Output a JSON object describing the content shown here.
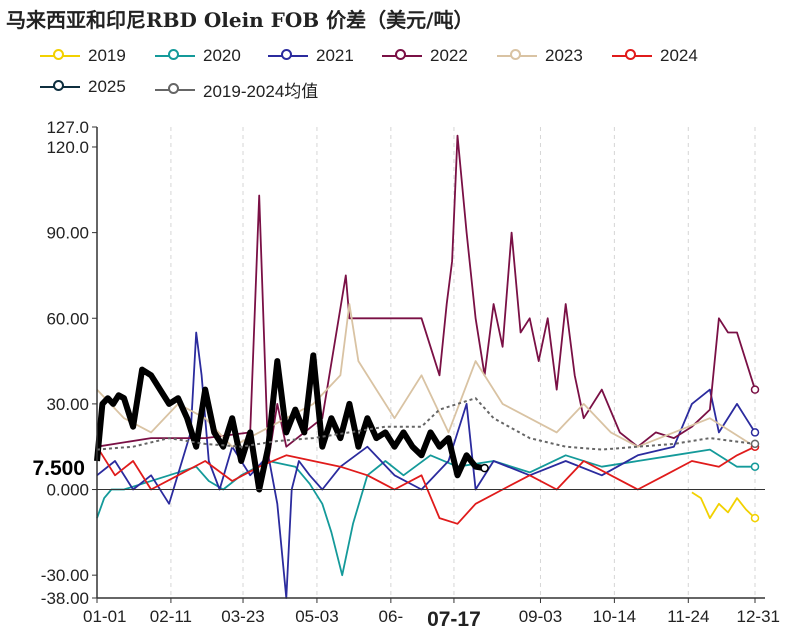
{
  "title": "马来西亚和印尼RBD Olein FOB 价差（美元/吨）",
  "legend": [
    {
      "label": "2019",
      "color": "#f2d100"
    },
    {
      "label": "2020",
      "color": "#149a9a"
    },
    {
      "label": "2021",
      "color": "#2b2b9e"
    },
    {
      "label": "2022",
      "color": "#7a1045"
    },
    {
      "label": "2023",
      "color": "#d9c3a3"
    },
    {
      "label": "2024",
      "color": "#e01b1b"
    },
    {
      "label": "2025",
      "color": "#0f2f3f"
    },
    {
      "label": "2019-2024均值",
      "color": "#666666"
    }
  ],
  "chart_data": {
    "type": "line",
    "title": "马来西亚和印尼RBD Olein FOB 价差（美元/吨）",
    "xlabel": "",
    "ylabel": "",
    "ylim": [
      -38,
      127
    ],
    "y_ticks": [
      "127.0",
      "120.0",
      "90.00",
      "60.00",
      "30.00",
      "0.000",
      "-30.00",
      "-38.00"
    ],
    "y_tick_values": [
      127,
      120,
      90,
      60,
      30,
      0,
      -30,
      -38
    ],
    "x_ticks": [
      "01-01",
      "02-11",
      "03-23",
      "05-03",
      "06-",
      "07-17",
      "09-03",
      "10-14",
      "11-24",
      "12-31"
    ],
    "highlight_value_label": "7.500",
    "highlight_value": 7.5,
    "highlight_tick": "07-17",
    "series": [
      {
        "name": "2019",
        "x": [
          330,
          335,
          340,
          345,
          350,
          355,
          360,
          365
        ],
        "values": [
          -1,
          -3,
          -10,
          -5,
          -8,
          -3,
          -7,
          -10
        ]
      },
      {
        "name": "2020",
        "x": [
          0,
          4,
          8,
          15,
          25,
          40,
          55,
          62,
          70,
          80,
          95,
          110,
          118,
          125,
          130,
          136,
          142,
          150,
          160,
          170,
          185,
          200,
          220,
          240,
          260,
          280,
          300,
          320,
          340,
          355,
          365
        ],
        "values": [
          -10,
          -3,
          0,
          0,
          2,
          5,
          8,
          3,
          0,
          5,
          10,
          8,
          2,
          -5,
          -15,
          -30,
          -12,
          5,
          10,
          5,
          12,
          8,
          10,
          6,
          12,
          8,
          10,
          12,
          14,
          8,
          8
        ]
      },
      {
        "name": "2021",
        "x": [
          0,
          10,
          20,
          30,
          40,
          52,
          55,
          58,
          62,
          68,
          75,
          85,
          95,
          100,
          105,
          108,
          112,
          118,
          125,
          135,
          150,
          165,
          180,
          195,
          205,
          210,
          220,
          240,
          260,
          280,
          300,
          320,
          330,
          340,
          345,
          355,
          360,
          365
        ],
        "values": [
          5,
          10,
          0,
          5,
          -5,
          20,
          55,
          40,
          10,
          0,
          15,
          5,
          12,
          -5,
          -38,
          0,
          10,
          5,
          0,
          8,
          15,
          5,
          0,
          10,
          30,
          0,
          10,
          5,
          10,
          5,
          12,
          15,
          30,
          35,
          20,
          30,
          25,
          20
        ]
      },
      {
        "name": "2022",
        "x": [
          0,
          30,
          60,
          85,
          90,
          95,
          100,
          105,
          115,
          125,
          138,
          140,
          143,
          150,
          160,
          170,
          180,
          190,
          194,
          197,
          200,
          205,
          210,
          215,
          220,
          225,
          230,
          235,
          240,
          245,
          250,
          255,
          260,
          265,
          270,
          280,
          290,
          300,
          310,
          320,
          330,
          340,
          345,
          350,
          355,
          365
        ],
        "values": [
          15,
          18,
          18,
          20,
          103,
          10,
          30,
          15,
          20,
          25,
          75,
          60,
          60,
          60,
          60,
          60,
          60,
          40,
          65,
          80,
          124,
          90,
          60,
          40,
          65,
          50,
          90,
          55,
          60,
          45,
          60,
          35,
          65,
          40,
          25,
          35,
          20,
          15,
          20,
          18,
          22,
          28,
          60,
          55,
          55,
          35
        ]
      },
      {
        "name": "2023",
        "x": [
          0,
          15,
          30,
          45,
          60,
          75,
          90,
          105,
          120,
          135,
          140,
          145,
          155,
          165,
          180,
          195,
          210,
          225,
          240,
          255,
          270,
          285,
          300,
          320,
          340,
          365
        ],
        "values": [
          35,
          25,
          20,
          30,
          25,
          15,
          20,
          25,
          30,
          40,
          65,
          45,
          35,
          25,
          40,
          20,
          45,
          30,
          25,
          20,
          30,
          20,
          15,
          20,
          25,
          15
        ]
      },
      {
        "name": "2024",
        "x": [
          0,
          10,
          20,
          30,
          45,
          60,
          75,
          90,
          105,
          120,
          135,
          150,
          165,
          180,
          190,
          200,
          210,
          225,
          240,
          255,
          270,
          285,
          300,
          315,
          330,
          345,
          355,
          365
        ],
        "values": [
          15,
          5,
          10,
          0,
          5,
          10,
          3,
          8,
          12,
          10,
          8,
          5,
          0,
          5,
          -10,
          -12,
          -5,
          0,
          5,
          0,
          10,
          5,
          0,
          5,
          10,
          8,
          12,
          15
        ]
      },
      {
        "name": "2025",
        "x": [
          0,
          3,
          6,
          9,
          12,
          15,
          20,
          25,
          30,
          35,
          40,
          45,
          50,
          55,
          60,
          65,
          70,
          75,
          80,
          85,
          90,
          95,
          100,
          105,
          110,
          115,
          120,
          125,
          130,
          135,
          140,
          145,
          150,
          155,
          160,
          165,
          170,
          175,
          180,
          185,
          190,
          195,
          200,
          205,
          210,
          215
        ],
        "values": [
          10,
          30,
          32,
          30,
          33,
          32,
          22,
          42,
          40,
          35,
          30,
          32,
          25,
          15,
          35,
          20,
          15,
          25,
          10,
          20,
          0,
          15,
          45,
          20,
          28,
          20,
          47,
          15,
          25,
          18,
          30,
          15,
          25,
          18,
          20,
          15,
          20,
          15,
          12,
          20,
          15,
          18,
          5,
          12,
          8,
          7.5
        ]
      },
      {
        "name": "2019-2024均值",
        "x": [
          0,
          20,
          40,
          60,
          80,
          100,
          120,
          140,
          160,
          180,
          190,
          200,
          210,
          220,
          240,
          260,
          280,
          300,
          320,
          340,
          365
        ],
        "values": [
          14,
          15,
          18,
          16,
          15,
          17,
          18,
          20,
          22,
          22,
          28,
          30,
          32,
          25,
          18,
          15,
          14,
          15,
          16,
          18,
          16
        ]
      }
    ]
  }
}
